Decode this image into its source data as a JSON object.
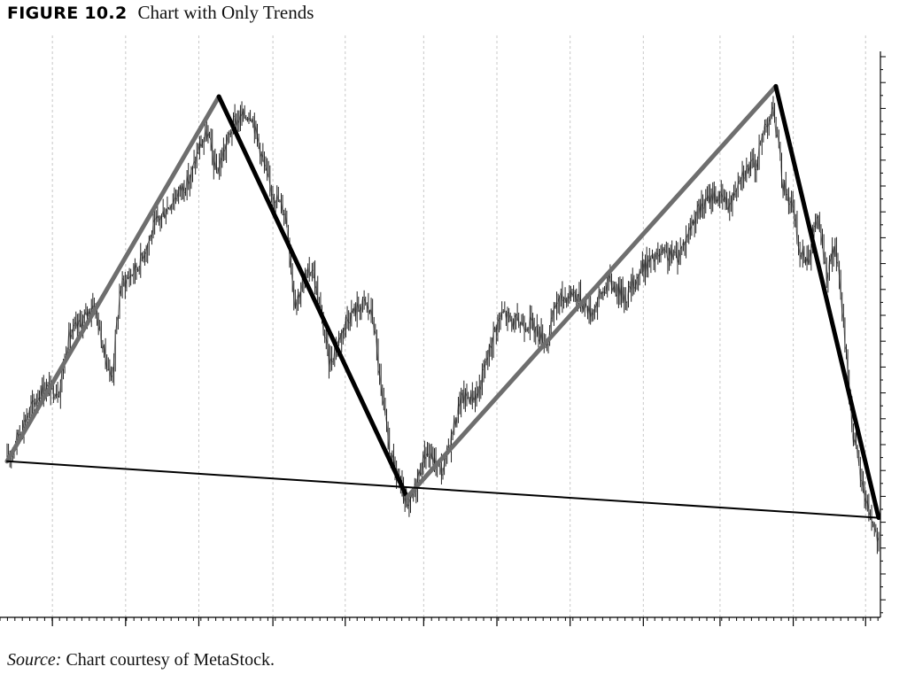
{
  "figure": {
    "label": "FIGURE 10.2",
    "title": "Chart with Only Trends",
    "source_prefix": "Source:",
    "source_text": " Chart courtesy of MetaStock."
  },
  "chart_data": {
    "type": "line",
    "title": "Chart with Only Trends",
    "xlabel": "",
    "ylabel": "",
    "x_range": [
      0,
      100
    ],
    "y_range": [
      0,
      100
    ],
    "grid": "vertical dashed",
    "legend": "none",
    "colors": {
      "price": "#222222",
      "uptrend": "#6e6e6e",
      "downtrend": "#000000",
      "baseline": "#000000",
      "grid": "#c8c8c8"
    },
    "price_anchors": [
      {
        "x": 0,
        "y": 24
      },
      {
        "x": 2,
        "y": 32
      },
      {
        "x": 4,
        "y": 38
      },
      {
        "x": 6,
        "y": 38
      },
      {
        "x": 7,
        "y": 48
      },
      {
        "x": 9,
        "y": 52
      },
      {
        "x": 10,
        "y": 55
      },
      {
        "x": 11,
        "y": 46
      },
      {
        "x": 12,
        "y": 40
      },
      {
        "x": 13,
        "y": 58
      },
      {
        "x": 15,
        "y": 62
      },
      {
        "x": 17,
        "y": 70
      },
      {
        "x": 19,
        "y": 75
      },
      {
        "x": 21,
        "y": 79
      },
      {
        "x": 22,
        "y": 85
      },
      {
        "x": 23,
        "y": 88
      },
      {
        "x": 24,
        "y": 80
      },
      {
        "x": 25,
        "y": 85
      },
      {
        "x": 26,
        "y": 90
      },
      {
        "x": 28,
        "y": 92
      },
      {
        "x": 30,
        "y": 78
      },
      {
        "x": 32,
        "y": 72
      },
      {
        "x": 33,
        "y": 55
      },
      {
        "x": 35,
        "y": 62
      },
      {
        "x": 37,
        "y": 43
      },
      {
        "x": 39,
        "y": 52
      },
      {
        "x": 41,
        "y": 55
      },
      {
        "x": 42,
        "y": 52
      },
      {
        "x": 43,
        "y": 36
      },
      {
        "x": 44,
        "y": 25
      },
      {
        "x": 46,
        "y": 14
      },
      {
        "x": 47,
        "y": 20
      },
      {
        "x": 48,
        "y": 26
      },
      {
        "x": 49,
        "y": 24
      },
      {
        "x": 50,
        "y": 22
      },
      {
        "x": 52,
        "y": 36
      },
      {
        "x": 54,
        "y": 37
      },
      {
        "x": 56,
        "y": 50
      },
      {
        "x": 57,
        "y": 53
      },
      {
        "x": 58,
        "y": 51
      },
      {
        "x": 60,
        "y": 51
      },
      {
        "x": 62,
        "y": 47
      },
      {
        "x": 63,
        "y": 55
      },
      {
        "x": 65,
        "y": 57
      },
      {
        "x": 67,
        "y": 53
      },
      {
        "x": 69,
        "y": 59
      },
      {
        "x": 71,
        "y": 56
      },
      {
        "x": 73,
        "y": 62
      },
      {
        "x": 75,
        "y": 64
      },
      {
        "x": 77,
        "y": 64
      },
      {
        "x": 79,
        "y": 72
      },
      {
        "x": 81,
        "y": 76
      },
      {
        "x": 83,
        "y": 74
      },
      {
        "x": 84,
        "y": 80
      },
      {
        "x": 86,
        "y": 82
      },
      {
        "x": 87,
        "y": 90
      },
      {
        "x": 88,
        "y": 92
      },
      {
        "x": 89,
        "y": 78
      },
      {
        "x": 90,
        "y": 74
      },
      {
        "x": 91,
        "y": 64
      },
      {
        "x": 92,
        "y": 64
      },
      {
        "x": 93,
        "y": 72
      },
      {
        "x": 94,
        "y": 60
      },
      {
        "x": 95,
        "y": 66
      },
      {
        "x": 96,
        "y": 50
      },
      {
        "x": 97,
        "y": 30
      },
      {
        "x": 98,
        "y": 20
      },
      {
        "x": 99,
        "y": 14
      },
      {
        "x": 100,
        "y": 8
      }
    ],
    "trend_lines": [
      {
        "kind": "uptrend",
        "from": {
          "x": 0,
          "y": 24
        },
        "to": {
          "x": 24.3,
          "y": 95
        }
      },
      {
        "kind": "downtrend",
        "from": {
          "x": 24.3,
          "y": 95
        },
        "to": {
          "x": 45.9,
          "y": 17
        }
      },
      {
        "kind": "uptrend",
        "from": {
          "x": 45.9,
          "y": 17
        },
        "to": {
          "x": 88.2,
          "y": 97
        }
      },
      {
        "kind": "downtrend",
        "from": {
          "x": 88.2,
          "y": 97
        },
        "to": {
          "x": 100,
          "y": 13
        }
      },
      {
        "kind": "baseline",
        "from": {
          "x": 0,
          "y": 24
        },
        "to": {
          "x": 100,
          "y": 13
        }
      }
    ],
    "vertical_grid_x": [
      5.2,
      13.6,
      22,
      30.5,
      38.8,
      47.8,
      56.2,
      64.6,
      73,
      81.8,
      90.2,
      98.5
    ]
  }
}
